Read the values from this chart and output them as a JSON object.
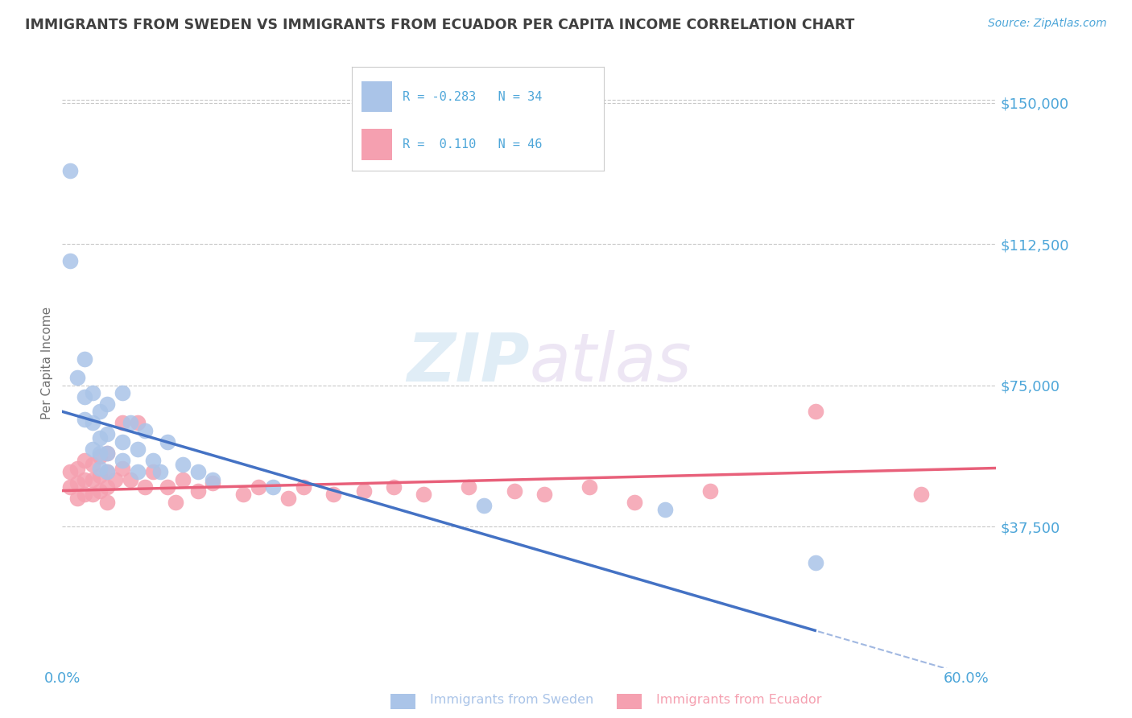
{
  "title": "IMMIGRANTS FROM SWEDEN VS IMMIGRANTS FROM ECUADOR PER CAPITA INCOME CORRELATION CHART",
  "source": "Source: ZipAtlas.com",
  "ylabel": "Per Capita Income",
  "ylim": [
    0,
    162000
  ],
  "xlim": [
    0.0,
    0.62
  ],
  "background_color": "#ffffff",
  "grid_color": "#c8c8c8",
  "series1_color": "#aac4e8",
  "series2_color": "#f5a0b0",
  "line1_color": "#4472c4",
  "line2_color": "#e8607a",
  "title_color": "#404040",
  "axis_label_color": "#4da6d9",
  "sweden_x": [
    0.005,
    0.005,
    0.01,
    0.015,
    0.015,
    0.015,
    0.02,
    0.02,
    0.02,
    0.025,
    0.025,
    0.025,
    0.025,
    0.03,
    0.03,
    0.03,
    0.03,
    0.04,
    0.04,
    0.04,
    0.045,
    0.05,
    0.05,
    0.055,
    0.06,
    0.065,
    0.07,
    0.08,
    0.09,
    0.1,
    0.14,
    0.28,
    0.4,
    0.5
  ],
  "sweden_y": [
    132000,
    108000,
    77000,
    82000,
    72000,
    66000,
    73000,
    65000,
    58000,
    68000,
    61000,
    57000,
    53000,
    70000,
    62000,
    57000,
    52000,
    73000,
    60000,
    55000,
    65000,
    58000,
    52000,
    63000,
    55000,
    52000,
    60000,
    54000,
    52000,
    50000,
    48000,
    43000,
    42000,
    28000
  ],
  "ecuador_x": [
    0.005,
    0.005,
    0.01,
    0.01,
    0.01,
    0.015,
    0.015,
    0.015,
    0.02,
    0.02,
    0.02,
    0.025,
    0.025,
    0.025,
    0.03,
    0.03,
    0.03,
    0.03,
    0.035,
    0.04,
    0.04,
    0.045,
    0.05,
    0.055,
    0.06,
    0.07,
    0.075,
    0.08,
    0.09,
    0.1,
    0.12,
    0.13,
    0.15,
    0.16,
    0.18,
    0.2,
    0.22,
    0.24,
    0.27,
    0.3,
    0.32,
    0.35,
    0.38,
    0.43,
    0.5,
    0.57
  ],
  "ecuador_y": [
    52000,
    48000,
    53000,
    49000,
    45000,
    55000,
    50000,
    46000,
    54000,
    50000,
    46000,
    56000,
    51000,
    47000,
    57000,
    52000,
    48000,
    44000,
    50000,
    65000,
    53000,
    50000,
    65000,
    48000,
    52000,
    48000,
    44000,
    50000,
    47000,
    49000,
    46000,
    48000,
    45000,
    48000,
    46000,
    47000,
    48000,
    46000,
    48000,
    47000,
    46000,
    48000,
    44000,
    47000,
    68000,
    46000
  ],
  "ytick_vals": [
    37500,
    75000,
    112500,
    150000
  ],
  "ytick_labels": [
    "$37,500",
    "$75,000",
    "$112,500",
    "$150,000"
  ]
}
